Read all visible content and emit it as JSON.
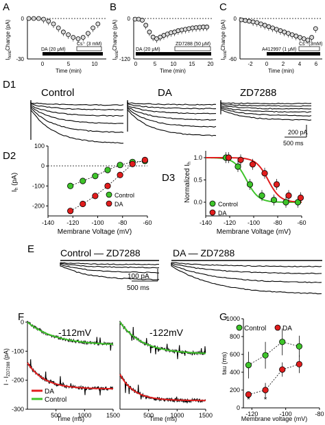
{
  "panels": {
    "A": "A",
    "B": "B",
    "C": "C",
    "D1": "D1",
    "D2": "D2",
    "D3": "D3",
    "E": "E",
    "F": "F",
    "G": "G"
  },
  "top": {
    "ylabel_main": "Change (pA)",
    "ylabel_sub": "hold",
    "ylabel_I": "I",
    "xlabel": "Time (min)",
    "A": {
      "yticks": [
        "0",
        "-30"
      ],
      "xticks": [
        "0",
        "5",
        "10"
      ],
      "bar1": "DA (20 μM)",
      "bar2": "Cs⁺ (3 mM)"
    },
    "B": {
      "yticks": [
        "0",
        "-120"
      ],
      "xticks": [
        "0",
        "5",
        "10",
        "15",
        "20"
      ],
      "bar1": "DA (20 μM)",
      "bar2": "ZD7288 (50 μM)"
    },
    "C": {
      "yticks": [
        "0",
        "-60"
      ],
      "xticks": [
        "-2",
        "0",
        "2",
        "4",
        "6"
      ],
      "bar1": "A412997 (1 μM)",
      "bar2": "Cs⁺ (3mM)"
    }
  },
  "d1": {
    "labels": [
      "Control",
      "DA",
      "ZD7288"
    ],
    "scale_pa": "200 pA",
    "scale_ms": "500 ms"
  },
  "d2": {
    "ylabel": "I",
    "ylabel_sub": "h",
    "yunit": " (pA)",
    "xlabel": "Membrane Voltage (mV)",
    "legend": [
      "Control",
      "DA"
    ]
  },
  "d3": {
    "ylabel": "Normalized I",
    "ylabel_sub": "h",
    "xlabel": "Membrane Voltage (mV)",
    "legend": [
      "Control",
      "DA"
    ]
  },
  "e": {
    "label1": "Control — ZD7288",
    "label2": "DA — ZD7288",
    "scale_pa": "100 pA",
    "scale_ms": "500 ms"
  },
  "f": {
    "v1": "-112mV",
    "v2": "-122mV",
    "ylabel": "I - I",
    "ylabel_sub": "ZD7288",
    "yunit": " (pA)",
    "xlabel": "Time (ms)",
    "legend": [
      "DA",
      "Control"
    ],
    "yticks": [
      "0",
      "-100",
      "-200",
      "-300"
    ],
    "xticks": [
      "500",
      "1000",
      "1500"
    ]
  },
  "g": {
    "ylabel": "tau (ms)",
    "xlabel": "Membrane voltage (mV)",
    "legend": [
      "Control",
      "DA"
    ],
    "star": "*"
  },
  "colors": {
    "control": "#3ec42a",
    "da": "#e11d1d"
  },
  "chart_data": [
    {
      "type": "scatter",
      "panel": "A",
      "ylim": [
        -30,
        0
      ],
      "xlim": [
        -3,
        12
      ],
      "x": [
        -3,
        -2,
        -1,
        0,
        1,
        2,
        3,
        4,
        5,
        6,
        7,
        8,
        9,
        10,
        11
      ],
      "y": [
        0,
        0,
        0,
        -0.5,
        -2,
        -4,
        -7,
        -10,
        -12,
        -14,
        -15,
        -14,
        -11,
        -7,
        -4
      ]
    },
    {
      "type": "scatter",
      "panel": "B",
      "ylim": [
        -120,
        0
      ],
      "xlim": [
        -1,
        20
      ],
      "x": [
        -1,
        0,
        1,
        2,
        3,
        4,
        5,
        6,
        7,
        8,
        9,
        10,
        11,
        12,
        13,
        14,
        15,
        16,
        17,
        18,
        19
      ],
      "y": [
        -2,
        -2,
        -5,
        -20,
        -40,
        -55,
        -60,
        -55,
        -50,
        -46,
        -42,
        -40,
        -36,
        -34,
        -32,
        -30,
        -28,
        -27,
        -26,
        -25,
        -25
      ]
    },
    {
      "type": "scatter",
      "panel": "C",
      "ylim": [
        -60,
        0
      ],
      "xlim": [
        -3,
        7
      ],
      "x": [
        -3,
        -2.5,
        -2,
        -1.5,
        -1,
        -0.5,
        0,
        0.5,
        1,
        1.5,
        2,
        2.5,
        3,
        3.5,
        4,
        4.5,
        5,
        5.5,
        6,
        6.5
      ],
      "y": [
        -2,
        -3,
        -4,
        -5,
        -6,
        -8,
        -10,
        -12,
        -14,
        -16,
        -18,
        -20,
        -22,
        -24,
        -26,
        -28,
        -30,
        -32,
        -28,
        -15
      ]
    },
    {
      "type": "scatter",
      "panel": "D2",
      "xlim": [
        -140,
        -60
      ],
      "ylim": [
        -250,
        100
      ],
      "xticks": [
        -140,
        -120,
        -100,
        -80,
        -60
      ],
      "yticks": [
        100,
        0,
        -100,
        -200
      ],
      "series": [
        {
          "name": "Control",
          "x": [
            -122,
            -112,
            -102,
            -92,
            -82,
            -72,
            -62
          ],
          "y": [
            -100,
            -75,
            -50,
            -20,
            5,
            20,
            25
          ]
        },
        {
          "name": "DA",
          "x": [
            -122,
            -112,
            -102,
            -92,
            -82,
            -72,
            -62
          ],
          "y": [
            -225,
            -190,
            -150,
            -100,
            -45,
            10,
            30
          ]
        }
      ]
    },
    {
      "type": "line",
      "panel": "D3",
      "xlim": [
        -140,
        -60
      ],
      "ylim": [
        0,
        1
      ],
      "xticks": [
        -140,
        -120,
        -100,
        -80,
        -60
      ],
      "yticks": [
        0.0,
        0.5,
        1.0
      ],
      "series": [
        {
          "name": "Control",
          "x": [
            -122,
            -112,
            -102,
            -92,
            -82,
            -72,
            -62
          ],
          "y": [
            1.0,
            0.8,
            0.4,
            0.15,
            0.05,
            0.0,
            0.0
          ]
        },
        {
          "name": "DA",
          "x": [
            -122,
            -112,
            -102,
            -92,
            -82,
            -72,
            -62
          ],
          "y": [
            1.0,
            0.95,
            0.85,
            0.65,
            0.4,
            0.15,
            0.1
          ]
        }
      ]
    },
    {
      "type": "line",
      "panel": "F1",
      "xlim": [
        0,
        1500
      ],
      "ylim": [
        -300,
        0
      ],
      "series": [
        {
          "name": "Control",
          "tau": 500,
          "start": 0,
          "end": -80
        },
        {
          "name": "DA",
          "tau": 300,
          "start": -140,
          "end": -230
        }
      ]
    },
    {
      "type": "line",
      "panel": "F2",
      "xlim": [
        0,
        1500
      ],
      "ylim": [
        -300,
        0
      ],
      "series": [
        {
          "name": "Control",
          "tau": 400,
          "start": 0,
          "end": -110
        },
        {
          "name": "DA",
          "tau": 250,
          "start": -180,
          "end": -270
        }
      ]
    },
    {
      "type": "scatter",
      "panel": "G",
      "xlim": [
        -125,
        -80
      ],
      "ylim": [
        0,
        1000
      ],
      "xticks": [
        -120,
        -100,
        -80
      ],
      "yticks": [
        0,
        200,
        400,
        600,
        800,
        1000
      ],
      "series": [
        {
          "name": "Control",
          "x": [
            -122,
            -112,
            -102,
            -92
          ],
          "y": [
            480,
            590,
            740,
            690
          ],
          "err": [
            150,
            150,
            150,
            120
          ]
        },
        {
          "name": "DA",
          "x": [
            -122,
            -112,
            -102,
            -92
          ],
          "y": [
            150,
            200,
            430,
            490
          ],
          "err": [
            30,
            80,
            80,
            100
          ]
        }
      ],
      "sig": [
        -122,
        -112
      ]
    }
  ]
}
